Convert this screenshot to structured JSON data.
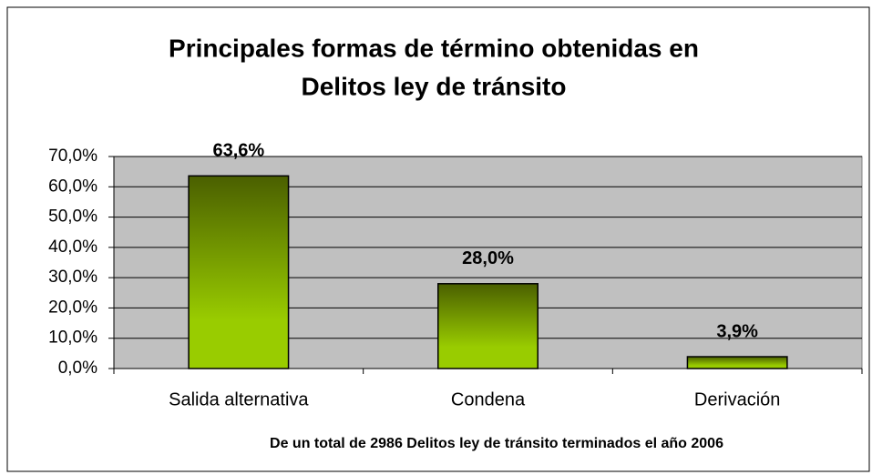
{
  "chart_data": {
    "type": "bar",
    "title": [
      "Principales formas de término obtenidas en",
      "Delitos ley de tránsito"
    ],
    "x_label": "De un total de 2986 Delitos ley de tránsito terminados el año 2006",
    "categories": [
      "Salida alternativa",
      "Condena",
      "Derivación"
    ],
    "values": [
      63.6,
      28.0,
      3.9
    ],
    "value_labels": [
      "63,6%",
      "28,0%",
      "3,9%"
    ],
    "color": [
      "#4a5f00",
      "#99cc00"
    ],
    "plot_background": "#c0c0c0",
    "ylim": [
      0,
      70
    ],
    "yticks": [
      {
        "value": 0,
        "label": "0,0%"
      },
      {
        "value": 10,
        "label": "10,0%"
      },
      {
        "value": 20,
        "label": "20,0%"
      },
      {
        "value": 30,
        "label": "30,0%"
      },
      {
        "value": 40,
        "label": "40,0%"
      },
      {
        "value": 50,
        "label": "50,0%"
      },
      {
        "value": 60,
        "label": "60,0%"
      },
      {
        "value": 70,
        "label": "70,0%"
      }
    ],
    "grid": true
  }
}
